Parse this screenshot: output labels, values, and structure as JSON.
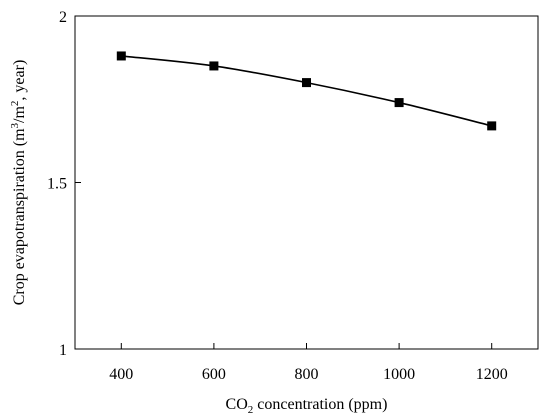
{
  "chart_data": {
    "type": "line",
    "title": "",
    "xlabel": "CO2 concentration (ppm)",
    "xlabel_parts": [
      "CO",
      "2",
      " concentration (ppm)"
    ],
    "ylabel": "Crop evapotranspiration (m3/m2, year)",
    "ylabel_parts": [
      "Crop evapotranspiration (m",
      "3",
      "/m",
      "2",
      ", year)"
    ],
    "x": [
      400,
      600,
      800,
      1000,
      1200
    ],
    "series": [
      {
        "values": [
          1.88,
          1.85,
          1.8,
          1.74,
          1.67
        ]
      }
    ],
    "xlim": [
      300,
      1300
    ],
    "ylim": [
      1,
      2
    ],
    "xticks": [
      400,
      600,
      800,
      1000,
      1200
    ],
    "yticks": [
      1,
      1.5,
      2
    ],
    "xtick_labels": [
      "400",
      "600",
      "800",
      "1000",
      "1200"
    ],
    "ytick_labels": [
      "1",
      "1.5",
      "2"
    ],
    "marker": "square",
    "line_color": "#000000",
    "marker_color": "#000000",
    "grid": false,
    "legend": "none"
  }
}
